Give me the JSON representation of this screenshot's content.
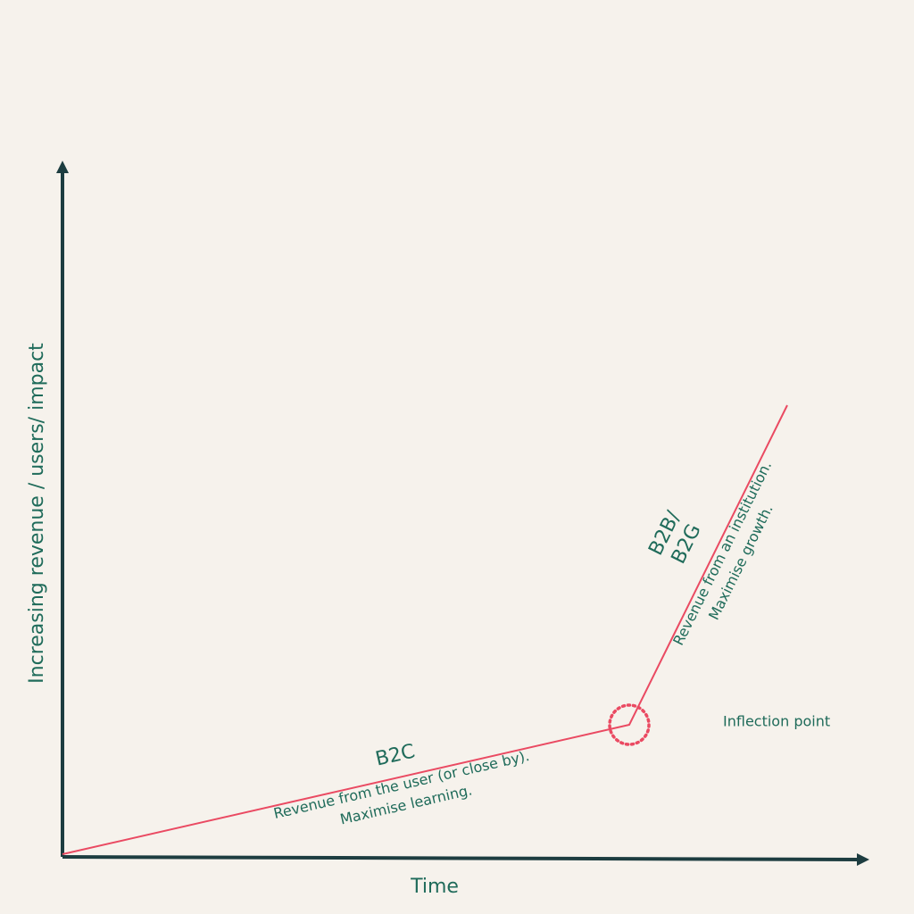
{
  "axes": {
    "x_label": "Time",
    "y_label": "Increasing revenue / users/ impact"
  },
  "segments": [
    {
      "title": [
        "B2C"
      ],
      "description": [
        "Revenue from the user (or close by).",
        "Maximise learning."
      ]
    },
    {
      "title": [
        "B2B/",
        "B2G"
      ],
      "description": [
        "Revenue from an institution.",
        "Maximise growth."
      ]
    }
  ],
  "inflection": {
    "label": "Inflection point"
  }
}
